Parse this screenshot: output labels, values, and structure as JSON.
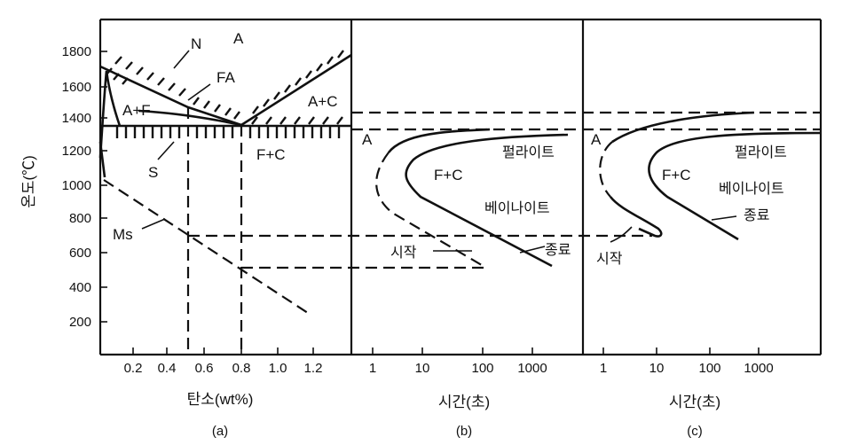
{
  "y_axis": {
    "label": "온도(℃)",
    "ticks": [
      "1800",
      "1600",
      "1400",
      "1200",
      "1000",
      "800",
      "600",
      "400",
      "200"
    ]
  },
  "panel_a": {
    "x_ticks": [
      "0.2",
      "0.4",
      "0.6",
      "0.8",
      "1.0",
      "1.2"
    ],
    "x_label": "탄소(wt%)",
    "caption": "(a)",
    "labels": {
      "N": "N",
      "A": "A",
      "FA": "FA",
      "AF": "A+F",
      "AC": "A+C",
      "S": "S",
      "FC": "F+C",
      "Ms": "Ms"
    }
  },
  "panel_b": {
    "x_ticks": [
      "1",
      "10",
      "100",
      "1000"
    ],
    "x_label": "시간(초)",
    "caption": "(b)",
    "labels": {
      "A": "A",
      "FC": "F+C",
      "pearlite": "펄라이트",
      "bainite": "베이나이트",
      "start": "시작",
      "finish": "종료"
    }
  },
  "panel_c": {
    "x_ticks": [
      "1",
      "10",
      "100",
      "1000"
    ],
    "x_label": "시간(초)",
    "caption": "(c)",
    "labels": {
      "A": "A",
      "FC": "F+C",
      "pearlite": "펄라이트",
      "bainite": "베이나이트",
      "start": "시작",
      "finish": "종료"
    }
  }
}
